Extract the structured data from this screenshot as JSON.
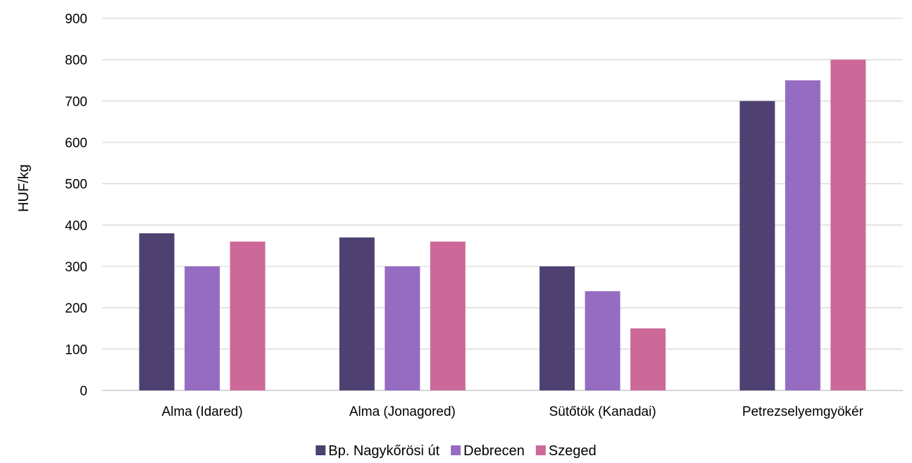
{
  "chart_data": {
    "type": "bar",
    "title": "",
    "xlabel": "",
    "ylabel": "HUF/kg",
    "ylim": [
      0,
      900
    ],
    "yticks": [
      0,
      100,
      200,
      300,
      400,
      500,
      600,
      700,
      800,
      900
    ],
    "grid": true,
    "legend_position": "bottom",
    "categories": [
      "Alma (Idared)",
      "Alma (Jonagored)",
      "Sütőtök (Kanadai)",
      "Petrezselyemgyökér"
    ],
    "series": [
      {
        "name": "Bp. Nagykőrösi út",
        "color": "#4E4172",
        "values": [
          380,
          370,
          300,
          700
        ]
      },
      {
        "name": "Debrecen",
        "color": "#956CC2",
        "values": [
          300,
          300,
          240,
          750
        ]
      },
      {
        "name": "Szeged",
        "color": "#CC6999",
        "values": [
          360,
          360,
          150,
          800
        ]
      }
    ]
  }
}
